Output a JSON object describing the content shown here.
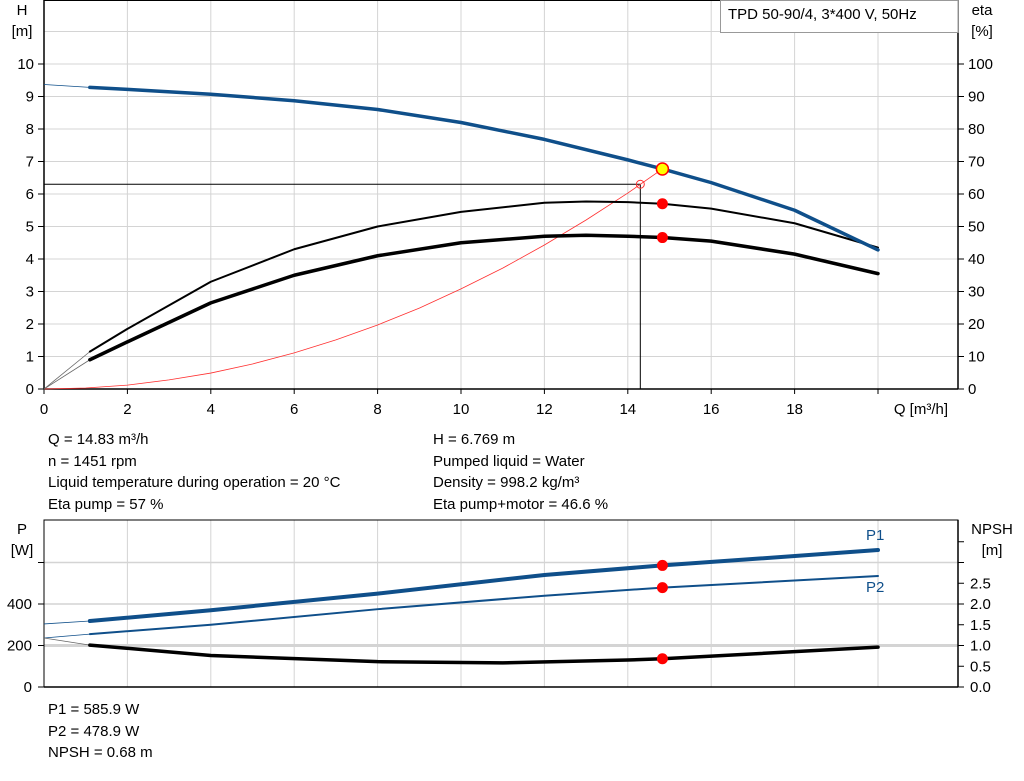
{
  "chart_data": [
    {
      "type": "line",
      "title": "TPD 50-90/4, 3*400 V, 50Hz",
      "xlabel": "Q [m³/h]",
      "ylabel": "H\n[m]",
      "ylabel_lines": [
        "H",
        "[m]"
      ],
      "y2label_lines": [
        "eta",
        "[%]"
      ],
      "xlim": [
        0,
        20
      ],
      "ylim": [
        0,
        11
      ],
      "y2lim": [
        0,
        110
      ],
      "xticks": [
        0,
        2,
        4,
        6,
        8,
        10,
        12,
        14,
        16,
        18
      ],
      "yticks": [
        0,
        1,
        2,
        3,
        4,
        5,
        6,
        7,
        8,
        9,
        10
      ],
      "y2ticks": [
        0,
        10,
        20,
        30,
        40,
        50,
        60,
        70,
        80,
        90,
        100
      ],
      "grid": true,
      "legend": "top-right",
      "series": [
        {
          "key": "H",
          "axis": "left",
          "color": "#0f4f8a",
          "x": [
            0,
            1.1,
            2,
            4,
            6,
            8,
            10,
            12,
            14,
            14.83,
            16,
            18,
            20
          ],
          "y": [
            9.37,
            9.28,
            9.22,
            9.07,
            8.87,
            8.6,
            8.2,
            7.68,
            7.05,
            6.77,
            6.35,
            5.5,
            4.28
          ]
        },
        {
          "key": "eta_pump",
          "axis": "right",
          "color": "#000000",
          "x": [
            0,
            1.1,
            2,
            4,
            6,
            8,
            10,
            12,
            13,
            14,
            14.83,
            16,
            18,
            20
          ],
          "y": [
            0,
            11.5,
            18.5,
            33,
            43,
            50,
            54.5,
            57.3,
            57.7,
            57.5,
            57,
            55.5,
            51,
            43.5
          ]
        },
        {
          "key": "eta_total",
          "axis": "right",
          "color": "#000000",
          "x": [
            0,
            1.1,
            2,
            4,
            6,
            8,
            10,
            12,
            13,
            14,
            14.83,
            16,
            18,
            20
          ],
          "y": [
            0,
            9,
            14.5,
            26.5,
            35,
            41,
            45,
            47,
            47.3,
            47,
            46.6,
            45.5,
            41.5,
            35.5
          ]
        },
        {
          "key": "system",
          "axis": "left",
          "color": "#ff3030",
          "x": [
            0,
            1,
            2,
            3,
            4,
            5,
            6,
            7,
            8,
            9,
            10,
            11,
            12,
            13,
            14,
            14.83
          ],
          "y": [
            0,
            0.03,
            0.12,
            0.28,
            0.49,
            0.77,
            1.11,
            1.51,
            1.97,
            2.49,
            3.08,
            3.72,
            4.43,
            5.2,
            6.03,
            6.77
          ]
        }
      ],
      "duty_point": {
        "Q": 14.83,
        "H": 6.769,
        "eta_pump": 57,
        "eta_total": 46.6
      },
      "required_point": {
        "Q": 14.3,
        "H": 6.3
      }
    },
    {
      "type": "line",
      "ylabel_lines": [
        "P",
        "[W]"
      ],
      "y2label_lines": [
        "NPSH",
        "[m]"
      ],
      "xlim": [
        0,
        20
      ],
      "ylim": [
        0,
        800
      ],
      "y2lim": [
        0,
        4
      ],
      "yticks": [
        0,
        200,
        400,
        600
      ],
      "ytick_labels": [
        "0",
        "200",
        "400",
        ""
      ],
      "y2ticks": [
        0,
        0.5,
        1.0,
        1.5,
        2.0,
        2.5,
        3.0,
        3.5
      ],
      "y2tick_labels": [
        "0.0",
        "0.5",
        "1.0",
        "1.5",
        "2.0",
        "2.5",
        "",
        ""
      ],
      "grid": true,
      "series": [
        {
          "key": "P1",
          "name": "P1",
          "axis": "left",
          "color": "#0f4f8a",
          "x": [
            0,
            1.1,
            4,
            8,
            12,
            14.83,
            20
          ],
          "y": [
            304,
            318,
            370,
            450,
            540,
            585.9,
            660
          ]
        },
        {
          "key": "P2",
          "name": "P2",
          "axis": "left",
          "color": "#0f4f8a",
          "x": [
            0,
            1.1,
            4,
            8,
            12,
            14.83,
            20
          ],
          "y": [
            236,
            255,
            300,
            375,
            440,
            478.9,
            535
          ]
        },
        {
          "key": "NPSH",
          "axis": "right",
          "color": "#000000",
          "x": [
            0,
            1.1,
            4,
            8,
            11,
            14,
            14.83,
            20
          ],
          "y": [
            1.18,
            1.01,
            0.76,
            0.61,
            0.58,
            0.65,
            0.68,
            0.96
          ]
        }
      ],
      "duty_point": {
        "Q": 14.83,
        "P1": 585.9,
        "P2": 478.9,
        "NPSH": 0.68
      }
    }
  ],
  "info": {
    "left": [
      "Q = 14.83 m³/h",
      "n = 1451 rpm",
      "Liquid temperature during operation = 20 °C",
      "Eta pump = 57 %"
    ],
    "right": [
      "H = 6.769 m",
      "Pumped liquid = Water",
      "Density = 998.2 kg/m³",
      "Eta pump+motor = 46.6 %"
    ],
    "bottom": [
      "P1 = 585.9 W",
      "P2 = 478.9 W",
      "NPSH = 0.68 m"
    ]
  },
  "colors": {
    "blue": "#0f4f8a",
    "red": "#ff0000",
    "yellow": "#ffff00",
    "grid": "#d4d4d4"
  }
}
